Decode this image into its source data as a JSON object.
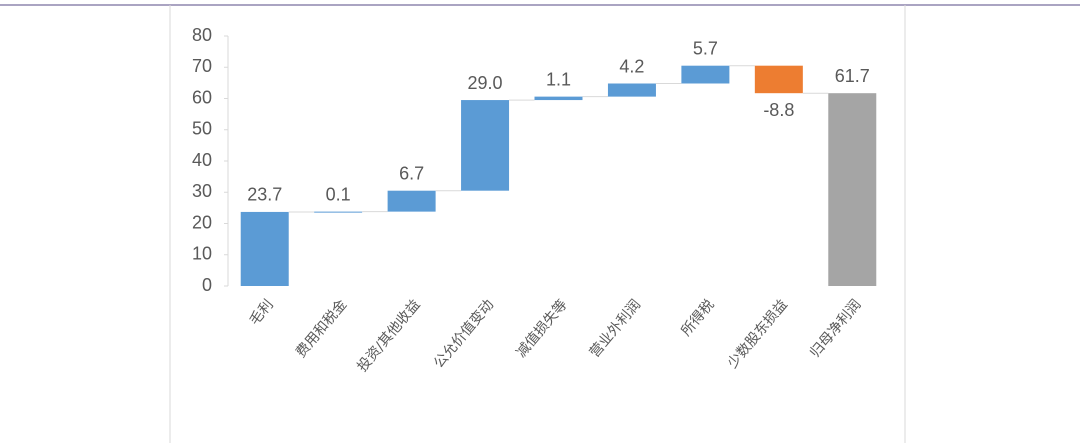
{
  "chart_data": {
    "type": "waterfall",
    "categories": [
      "毛利",
      "费用和税金",
      "投资/其他收益",
      "公允价值变动",
      "减值损失等",
      "营业外利润",
      "所得税",
      "少数股东损益",
      "归母净利润"
    ],
    "values": [
      23.7,
      0.1,
      6.7,
      29.0,
      1.1,
      4.2,
      5.7,
      -8.8,
      61.7
    ],
    "value_labels": [
      "23.7",
      "0.1",
      "6.7",
      "29.0",
      "1.1",
      "4.2",
      "5.7",
      "-8.8",
      "61.7"
    ],
    "colors": [
      "#5b9bd5",
      "#5b9bd5",
      "#5b9bd5",
      "#5b9bd5",
      "#5b9bd5",
      "#5b9bd5",
      "#5b9bd5",
      "#ed7d31",
      "#a5a5a5"
    ],
    "total": [
      false,
      false,
      false,
      false,
      false,
      false,
      false,
      false,
      true
    ],
    "ylim": [
      0,
      80
    ],
    "yticks": [
      0,
      10,
      20,
      30,
      40,
      50,
      60,
      70,
      80
    ]
  }
}
